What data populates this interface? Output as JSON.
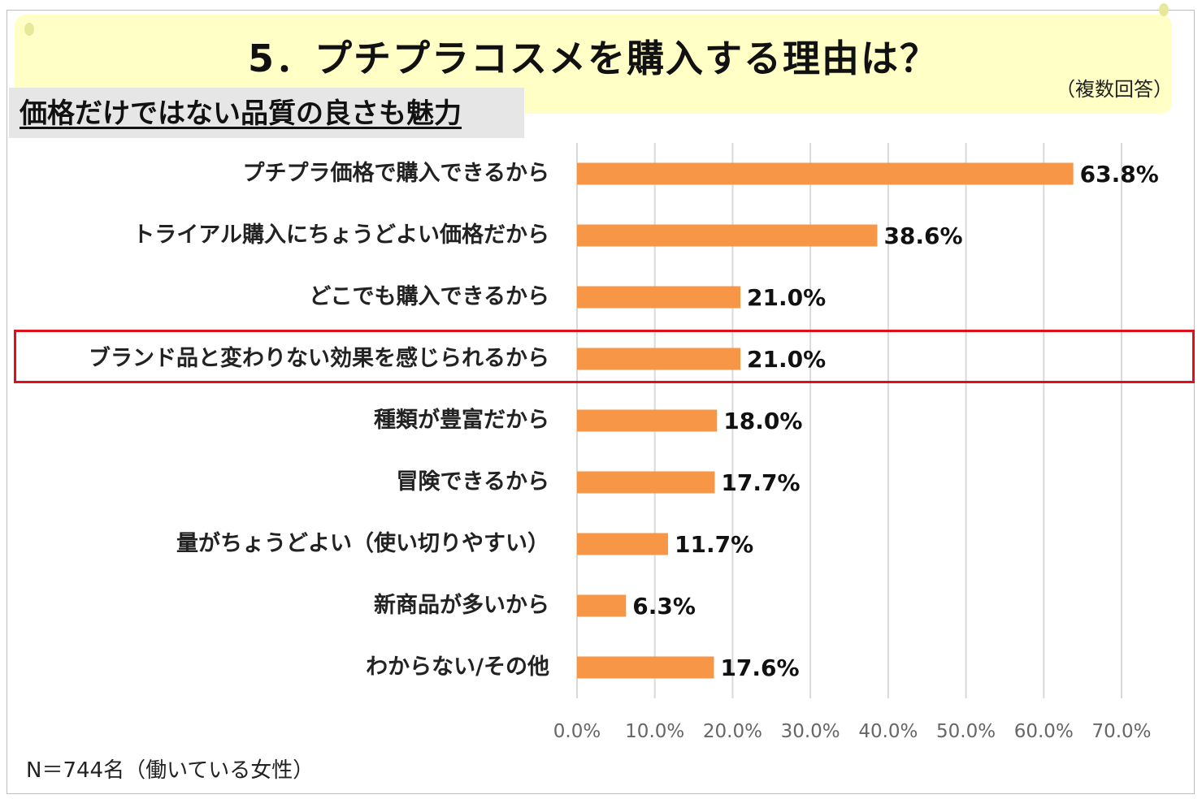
{
  "header": {
    "title": "5．プチプラコスメを購入する理由は？",
    "note": "（複数回答）",
    "subtitle": "価格だけではない品質の良さも魅力"
  },
  "footer": {
    "sample": "N＝744名（働いている女性）"
  },
  "colors": {
    "bar": "#f79646",
    "highlight_border": "#e0101a",
    "top_value": "#e0101a",
    "banner": "#ffffc6"
  },
  "chart_data": {
    "type": "bar",
    "orientation": "horizontal",
    "categories": [
      "プチプラ価格で購入できるから",
      "トライアル購入にちょうどよい価格だから",
      "どこでも購入できるから",
      "ブランド品と変わりない効果を感じられるから",
      "種類が豊富だから",
      "冒険できるから",
      "量がちょうどよい（使い切りやすい）",
      "新商品が多いから",
      "わからない/その他"
    ],
    "values": [
      63.8,
      38.6,
      21.0,
      21.0,
      18.0,
      17.7,
      11.7,
      6.3,
      17.6
    ],
    "value_labels": [
      "63.8%",
      "38.6%",
      "21.0%",
      "21.0%",
      "18.0%",
      "17.7%",
      "11.7%",
      "6.3%",
      "17.6%"
    ],
    "xlim": [
      0,
      70
    ],
    "xticks": [
      "0.0%",
      "10.0%",
      "20.0%",
      "30.0%",
      "40.0%",
      "50.0%",
      "60.0%",
      "70.0%"
    ],
    "grid": "vertical",
    "highlighted_category": "ブランド品と変わりない効果を感じられるから"
  }
}
